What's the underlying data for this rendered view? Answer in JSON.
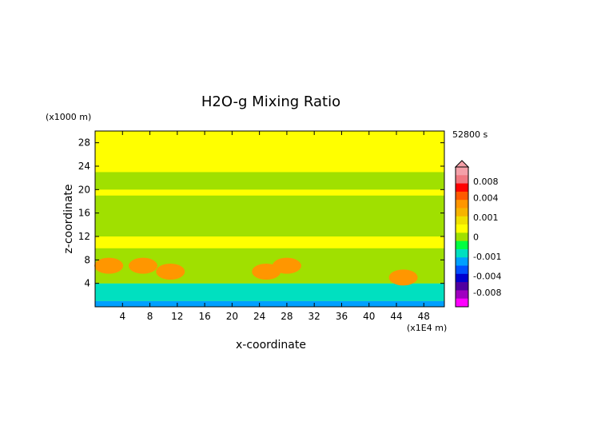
{
  "chart_data": {
    "type": "heatmap",
    "title": "H2O-g Mixing Ratio",
    "time_label": "52800 s",
    "xlabel": "x-coordinate",
    "ylabel": "z-coordinate",
    "x_unit": "(x1E4 m)",
    "y_unit": "(x1000 m)",
    "xlim": [
      0,
      51
    ],
    "ylim": [
      0,
      30
    ],
    "x_ticks": [
      4,
      8,
      12,
      16,
      20,
      24,
      28,
      32,
      36,
      40,
      44,
      48
    ],
    "y_ticks": [
      4,
      8,
      12,
      16,
      20,
      24,
      28
    ],
    "x_tick_labels": [
      "4",
      "8",
      "12",
      "16",
      "20",
      "24",
      "28",
      "32",
      "36",
      "40",
      "44",
      "48"
    ],
    "y_tick_labels": [
      "4",
      "8",
      "12",
      "16",
      "20",
      "24",
      "28"
    ],
    "colorbar": {
      "labels": [
        "0.008",
        "0.004",
        "0.001",
        "0",
        "-0.001",
        "-0.004",
        "-0.008"
      ],
      "levels": [
        0.008,
        0.004,
        0.001,
        0,
        -0.001,
        -0.004,
        -0.008
      ],
      "colors": [
        "#f4a0a8",
        "#f07880",
        "#ff0000",
        "#ff5a00",
        "#ff9600",
        "#f6b400",
        "#f0e000",
        "#ffff00",
        "#a0e000",
        "#00ff40",
        "#00e0c0",
        "#00a0ff",
        "#0050ff",
        "#0000d0",
        "#5000a0",
        "#a000c0",
        "#ff00ff"
      ]
    },
    "bands": [
      {
        "z": [
          0,
          1
        ],
        "value": "-0.004",
        "color": "#00a0ff"
      },
      {
        "z": [
          1,
          4
        ],
        "value": "-0.001",
        "color": "#00e0c0"
      },
      {
        "z": [
          4,
          10
        ],
        "value": "0",
        "color": "#a0e000"
      },
      {
        "z": [
          10,
          12
        ],
        "value": "0.001",
        "color": "#ffff00"
      },
      {
        "z": [
          12,
          19
        ],
        "value": "0",
        "color": "#a0e000"
      },
      {
        "z": [
          19,
          20
        ],
        "value": "0.001",
        "color": "#ffff00"
      },
      {
        "z": [
          20,
          23
        ],
        "value": "0",
        "color": "#a0e000"
      },
      {
        "z": [
          23,
          30
        ],
        "value": "0.001",
        "color": "#ffff00"
      }
    ],
    "plumes": [
      {
        "x": 2,
        "z": 7,
        "value": "0.004",
        "color": "#ff9600"
      },
      {
        "x": 7,
        "z": 7,
        "value": "0.004",
        "color": "#ff9600"
      },
      {
        "x": 11,
        "z": 6,
        "value": "0.004",
        "color": "#ff9600"
      },
      {
        "x": 25,
        "z": 6,
        "value": "0.004",
        "color": "#ff9600"
      },
      {
        "x": 28,
        "z": 7,
        "value": "0.004",
        "color": "#ff9600"
      },
      {
        "x": 45,
        "z": 5,
        "value": "0.004",
        "color": "#ff9600"
      }
    ]
  }
}
